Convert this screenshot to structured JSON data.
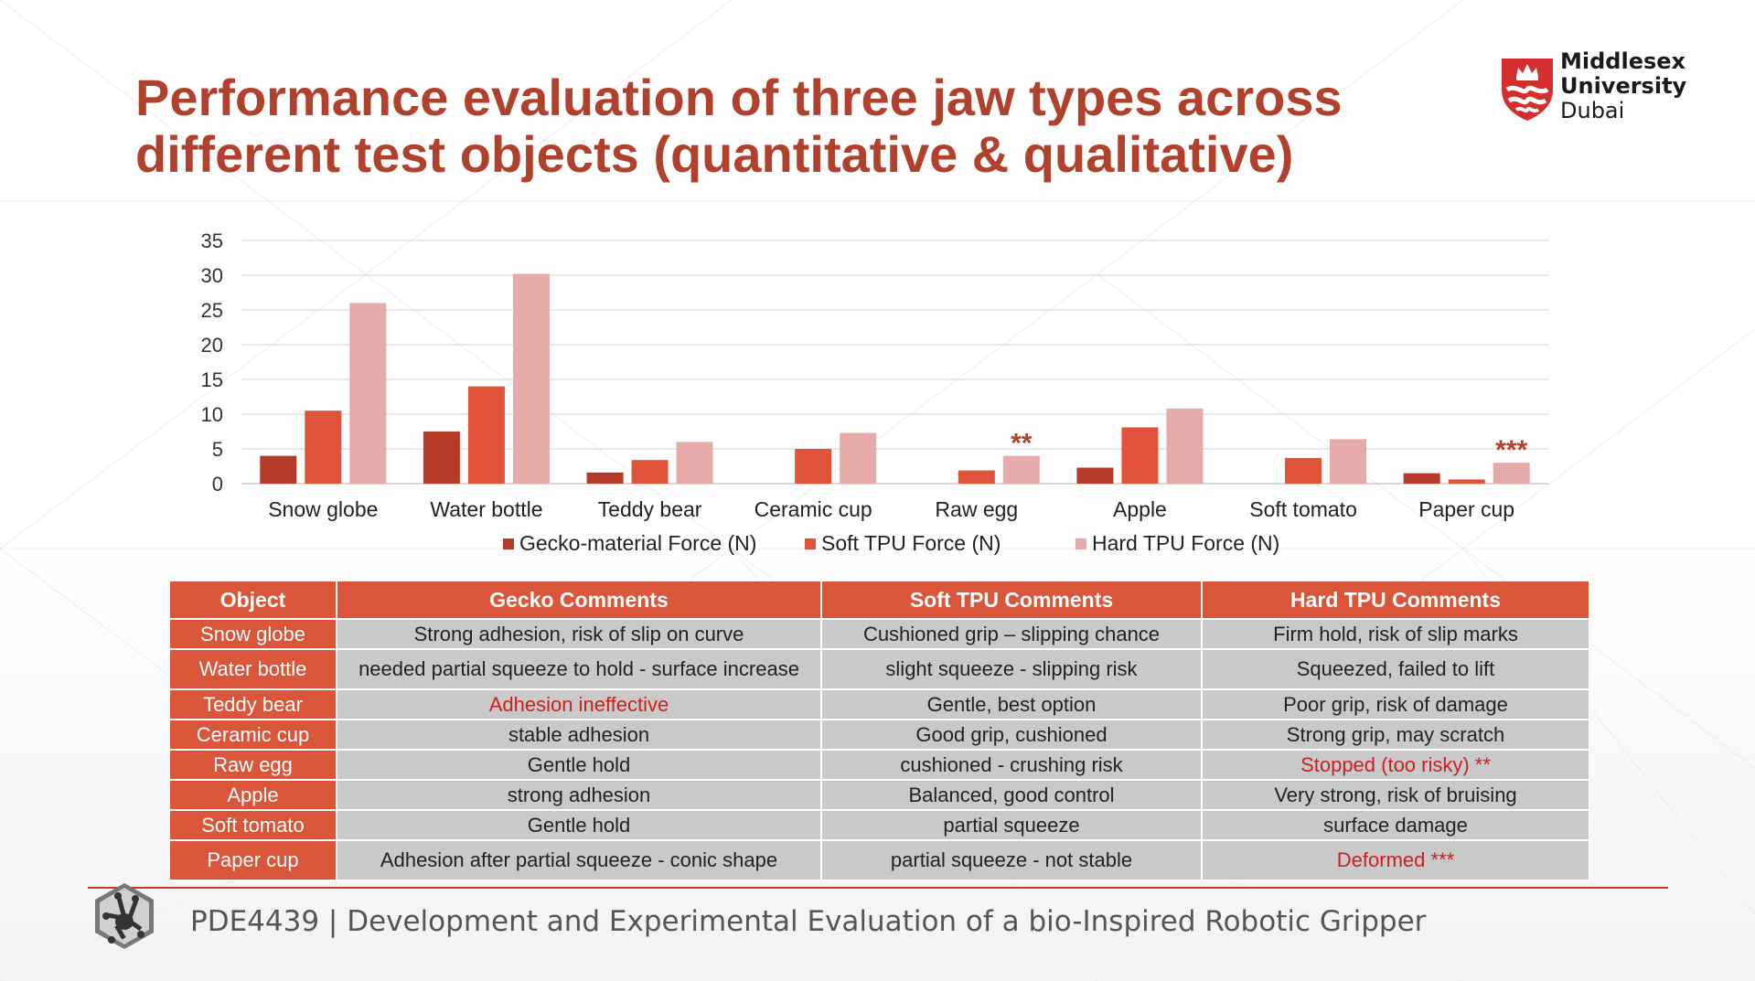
{
  "slide": {
    "title_lines": [
      "Performance evaluation of three jaw types across",
      "different test objects (quantitative & qualitative)"
    ],
    "logo": {
      "lines": [
        "Middlesex",
        "University",
        "Dubai"
      ]
    },
    "footer": "PDE4439 | Development and Experimental Evaluation of a bio-Inspired Robotic Gripper",
    "colors": {
      "accent": "#b0412c",
      "gecko": "#b33b28",
      "soft": "#e0533a",
      "hard": "#e6aaa9",
      "table_header": "#d9563a",
      "table_cell": "#c9c9c9",
      "warning": "#cc1f1f"
    }
  },
  "chart_data": {
    "type": "bar",
    "categories": [
      "Snow globe",
      "Water bottle",
      "Teddy bear",
      "Ceramic cup",
      "Raw egg",
      "Apple",
      "Soft tomato",
      "Paper cup"
    ],
    "series": [
      {
        "name": "Gecko-material Force (N)",
        "color": "#b33b28",
        "values": [
          4,
          7.5,
          1.6,
          0,
          0,
          2.3,
          0,
          1.5
        ]
      },
      {
        "name": "Soft TPU Force (N)",
        "color": "#e0533a",
        "values": [
          10.5,
          14,
          3.4,
          5,
          1.9,
          8.1,
          3.7,
          0.6
        ]
      },
      {
        "name": "Hard TPU Force (N)",
        "color": "#e6aaa9",
        "values": [
          26,
          30.2,
          6,
          7.3,
          4,
          10.8,
          6.4,
          3
        ]
      }
    ],
    "annotations": [
      {
        "category": "Raw egg",
        "series": "Hard TPU Force (N)",
        "text": "**"
      },
      {
        "category": "Paper cup",
        "series": "Hard TPU Force (N)",
        "text": "***"
      }
    ],
    "ylim": [
      0,
      35
    ],
    "yticks": [
      "0",
      "5",
      "10",
      "15",
      "20",
      "25",
      "30",
      "35"
    ],
    "grid": true,
    "legend_position": "bottom"
  },
  "table": {
    "headers": [
      "Object",
      "Gecko Comments",
      "Soft TPU Comments",
      "Hard TPU Comments"
    ],
    "rows": [
      {
        "object": "Snow globe",
        "gecko": "Strong adhesion, risk of slip on curve",
        "soft": "Cushioned grip – slipping chance",
        "hard": "Firm hold, risk of slip marks"
      },
      {
        "object": "Water bottle",
        "gecko": "needed partial squeeze to hold - surface increase",
        "soft": "slight squeeze - slipping risk",
        "hard": "Squeezed, failed to lift"
      },
      {
        "object": "Teddy bear",
        "gecko": "Adhesion ineffective",
        "soft": "Gentle, best option",
        "hard": "Poor grip, risk of damage"
      },
      {
        "object": "Ceramic cup",
        "gecko": "stable  adhesion",
        "soft": "Good grip, cushioned",
        "hard": "Strong grip, may scratch"
      },
      {
        "object": "Raw egg",
        "gecko": "Gentle hold",
        "soft": "cushioned - crushing risk",
        "hard": "Stopped (too risky) **"
      },
      {
        "object": "Apple",
        "gecko": "strong adhesion",
        "soft": "Balanced, good control",
        "hard": "Very strong, risk of bruising"
      },
      {
        "object": "Soft tomato",
        "gecko": "Gentle hold",
        "soft": "partial squeeze",
        "hard": "surface damage"
      },
      {
        "object": "Paper cup",
        "gecko": "Adhesion after partial squeeze - conic shape",
        "soft": "partial squeeze - not stable",
        "hard": "Deformed ***"
      }
    ]
  }
}
